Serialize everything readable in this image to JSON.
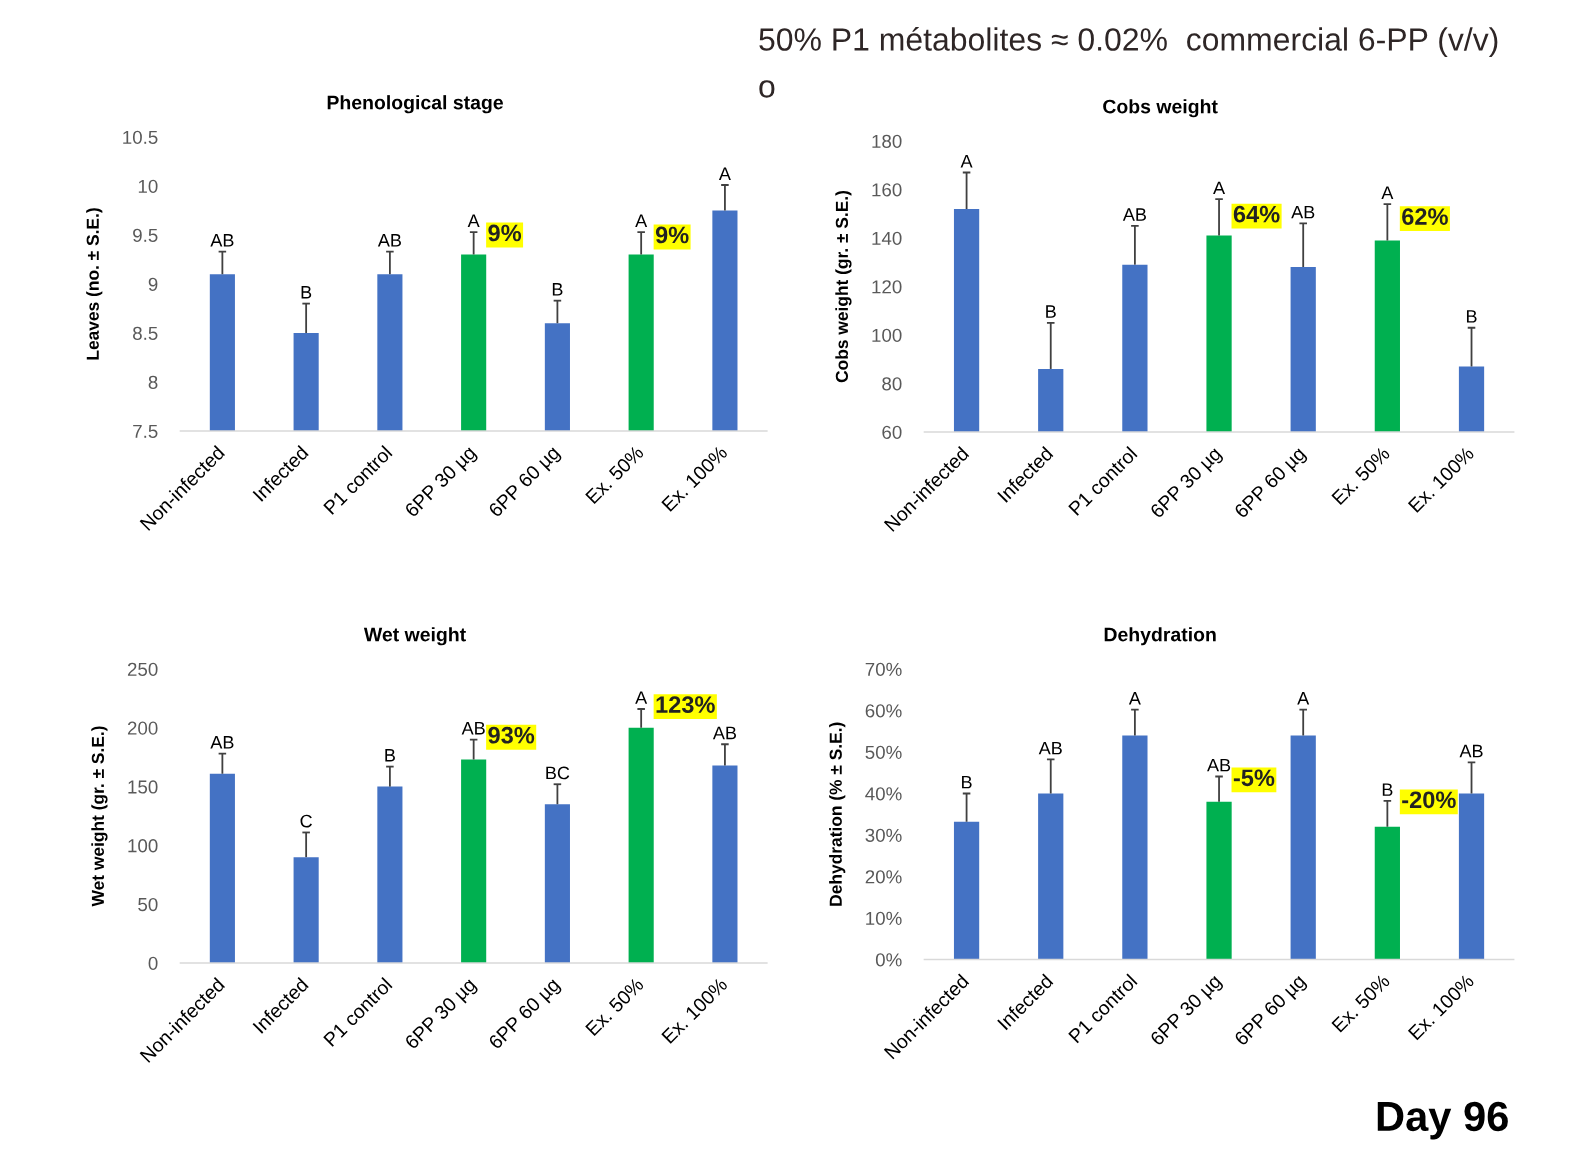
{
  "chart_data": [
    {
      "type": "other",
      "annotations": [
        "50% P1 métabolites ≈ 0.02%  commercial 6-PP (v/v)",
        "o"
      ]
    },
    {
      "type": "bar",
      "title": "Phenological stage",
      "ylabel": "Leaves (no. ± S.E.)",
      "categories": [
        "Non-infected",
        "Infected",
        "P1 control",
        "6PP 30 µg",
        "6PP 60 µg",
        "Ex. 50%",
        "Ex. 100%"
      ],
      "values": [
        9.1,
        8.5,
        9.1,
        9.3,
        8.6,
        9.3,
        9.75
      ],
      "colors": [
        "#4472c4",
        "#4472c4",
        "#4472c4",
        "#00b050",
        "#4472c4",
        "#00b050",
        "#4472c4"
      ],
      "errors": [
        [
          9.1,
          9.33
        ],
        [
          8.5,
          8.8
        ],
        [
          9.1,
          9.33
        ],
        [
          9.3,
          9.53
        ],
        [
          8.6,
          8.83
        ],
        [
          9.3,
          9.53
        ],
        [
          9.75,
          10.01
        ]
      ],
      "value_labels": [
        "AB",
        "B",
        "AB",
        "A",
        "B",
        "A",
        "A"
      ],
      "annotations": [
        {
          "text": "9%",
          "x": "6PP 30 µg",
          "y": 9.5
        },
        {
          "text": "9%",
          "x": "Ex. 50%",
          "y": 9.48
        }
      ],
      "ylim": [
        7.5,
        10.5
      ],
      "yticks": [
        7.5,
        8,
        8.5,
        9,
        9.5,
        10,
        10.5
      ]
    },
    {
      "type": "bar",
      "title": "Cobs weight",
      "ylabel": "Cobs weight (gr. ± S.E.)",
      "categories": [
        "Non-infected",
        "Infected",
        "P1 control",
        "6PP 30 µg",
        "6PP 60 µg",
        "Ex. 50%",
        "Ex. 100%"
      ],
      "values": [
        152,
        86,
        129,
        141,
        128,
        139,
        87
      ],
      "colors": [
        "#4472c4",
        "#4472c4",
        "#4472c4",
        "#00b050",
        "#4472c4",
        "#00b050",
        "#4472c4"
      ],
      "errors": [
        [
          152,
          167
        ],
        [
          86,
          105
        ],
        [
          129,
          145
        ],
        [
          141,
          156
        ],
        [
          128,
          146
        ],
        [
          139,
          154
        ],
        [
          87,
          103
        ]
      ],
      "value_labels": [
        "A",
        "B",
        "AB",
        "A",
        "AB",
        "A",
        "B"
      ],
      "annotations": [
        {
          "text": "64%",
          "x": "6PP 30 µg",
          "y": 149
        },
        {
          "text": "62%",
          "x": "Ex. 50%",
          "y": 148
        }
      ],
      "ylim": [
        60,
        180
      ],
      "yticks": [
        60,
        80,
        100,
        120,
        140,
        160,
        180
      ]
    },
    {
      "type": "bar",
      "title": "Wet weight",
      "ylabel": "Wet weight (gr. ± S.E.)",
      "categories": [
        "Non-infected",
        "Infected",
        "P1 control",
        "6PP 30 µg",
        "6PP 60 µg",
        "Ex. 50%",
        "Ex. 100%"
      ],
      "values": [
        161,
        90,
        150,
        173,
        135,
        200,
        168
      ],
      "colors": [
        "#4472c4",
        "#4472c4",
        "#4472c4",
        "#00b050",
        "#4472c4",
        "#00b050",
        "#4472c4"
      ],
      "errors": [
        [
          161,
          178
        ],
        [
          90,
          111
        ],
        [
          150,
          167
        ],
        [
          173,
          190
        ],
        [
          135,
          152
        ],
        [
          200,
          216
        ],
        [
          168,
          186
        ]
      ],
      "value_labels": [
        "AB",
        "C",
        "B",
        "AB",
        "BC",
        "A",
        "AB"
      ],
      "annotations": [
        {
          "text": "93%",
          "x": "6PP 30 µg",
          "y": 192
        },
        {
          "text": "123%",
          "x": "Ex. 50%",
          "y": 218
        }
      ],
      "ylim": [
        0,
        250
      ],
      "yticks": [
        0,
        50,
        100,
        150,
        200,
        250
      ]
    },
    {
      "type": "bar",
      "title": "Dehydration",
      "ylabel": "Dehydration (% ± S.E.)",
      "categories": [
        "Non-infected",
        "Infected",
        "P1 control",
        "6PP 30 µg",
        "6PP 60 µg",
        "Ex. 50%",
        "Ex. 100%"
      ],
      "values": [
        33.2,
        40,
        54,
        38,
        54,
        32,
        40
      ],
      "colors": [
        "#4472c4",
        "#4472c4",
        "#4472c4",
        "#00b050",
        "#4472c4",
        "#00b050",
        "#4472c4"
      ],
      "errors": [
        [
          33.2,
          40
        ],
        [
          40,
          48.2
        ],
        [
          54,
          60.2
        ],
        [
          38,
          44.1
        ],
        [
          54,
          60.2
        ],
        [
          32,
          38.2
        ],
        [
          40,
          47.5
        ]
      ],
      "value_labels": [
        "B",
        "AB",
        "A",
        "AB",
        "A",
        "B",
        "AB"
      ],
      "annotations": [
        {
          "text": "-5%",
          "x": "6PP 30 µg",
          "y": 43.3
        },
        {
          "text": "-20%",
          "x": "Ex. 50%",
          "y": 38
        }
      ],
      "ylim": [
        0,
        70
      ],
      "yticks": [
        {
          "value": 0,
          "label": "0%"
        },
        {
          "value": 10,
          "label": "10%"
        },
        {
          "value": 20,
          "label": "20%"
        },
        {
          "value": 30,
          "label": "30%"
        },
        {
          "value": 40,
          "label": "40%"
        },
        {
          "value": 50,
          "label": "50%"
        },
        {
          "value": 60,
          "label": "60%"
        },
        {
          "value": 70,
          "label": "70%"
        }
      ]
    },
    {
      "type": "other",
      "title": "Day 96"
    }
  ]
}
